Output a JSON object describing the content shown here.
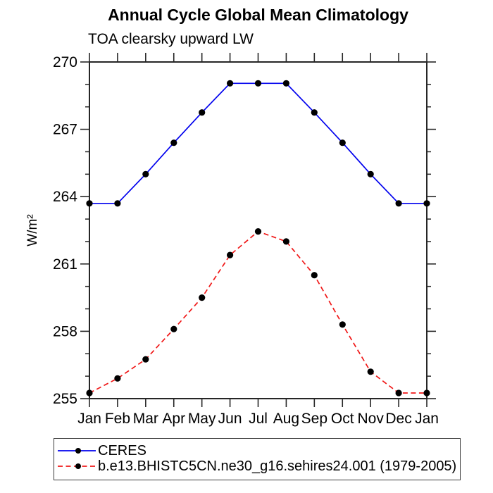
{
  "figure": {
    "title": "Annual Cycle Global Mean Climatology",
    "subtitle": "TOA clearsky upward LW"
  },
  "legend": {
    "items": [
      {
        "label": "CERES",
        "color": "#0000ee",
        "style": "solid",
        "marker": "black-dot"
      },
      {
        "label": "b.e13.BHISTC5CN.ne30_g16.sehires24.001 (1979-2005)",
        "color": "#f01818",
        "style": "dashed",
        "marker": "black-dot"
      }
    ]
  },
  "chart_data": {
    "type": "line",
    "title": "Annual Cycle Global Mean Climatology",
    "subtitle": "TOA clearsky upward LW",
    "xlabel": "",
    "ylabel": "W/m²",
    "categories": [
      "Jan",
      "Feb",
      "Mar",
      "Apr",
      "May",
      "Jun",
      "Jul",
      "Aug",
      "Sep",
      "Oct",
      "Nov",
      "Dec",
      "Jan"
    ],
    "ylim": [
      255,
      270
    ],
    "yticks_major": [
      255,
      258,
      261,
      264,
      267,
      270
    ],
    "ytick_minor_interval": 1,
    "grid": false,
    "legend_position": "below",
    "marker": {
      "shape": "circle",
      "color": "#000000"
    },
    "axis_color": "#262626",
    "series": [
      {
        "name": "CERES",
        "color": "#0000ee",
        "line_style": "solid",
        "values": [
          263.7,
          263.7,
          265.0,
          266.4,
          267.75,
          269.05,
          269.05,
          269.05,
          267.75,
          266.4,
          265.0,
          263.7,
          263.7
        ]
      },
      {
        "name": "b.e13.BHISTC5CN.ne30_g16.sehires24.001 (1979-2005)",
        "color": "#f01818",
        "line_style": "dashed",
        "values": [
          255.25,
          255.9,
          256.75,
          258.1,
          259.5,
          261.4,
          262.45,
          262.0,
          260.5,
          258.3,
          256.2,
          255.25,
          255.25
        ]
      }
    ]
  }
}
